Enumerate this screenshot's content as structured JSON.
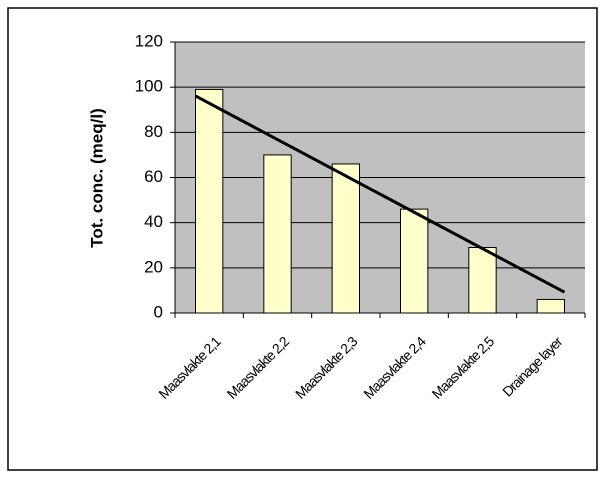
{
  "chart_data": {
    "type": "bar",
    "y_label": "Tot. conc. (meq/l)",
    "categories": [
      "Maasvlakte 2,1",
      "Maasvlakte 2,2",
      "Maasvlakte 2,3",
      "Maasvlakte 2,4",
      "Maasvlakte 2,5",
      "Drainage layer"
    ],
    "values": [
      99,
      70,
      66,
      46,
      29,
      6
    ],
    "color": "#ffffcc",
    "trendline": {
      "values": [
        96.1,
        9.2
      ],
      "color": "#000000"
    },
    "ylim": [
      0,
      120
    ],
    "yticks": [
      0,
      20,
      40,
      60,
      80,
      100,
      120
    ],
    "grid": true,
    "plot_background": "#c0c0c0"
  }
}
